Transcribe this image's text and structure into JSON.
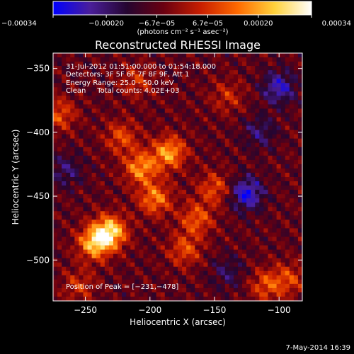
{
  "chart_data": {
    "type": "heatmap",
    "title": "Reconstructed RHESSI Image",
    "xlabel": "Heliocentric X (arcsec)",
    "ylabel": "Heliocentric Y (arcsec)",
    "xlim": [
      -275,
      -82
    ],
    "ylim": [
      -532,
      -338
    ],
    "x_ticks": [
      -250,
      -200,
      -150,
      -100
    ],
    "x_tick_labels": [
      "−250",
      "−200",
      "−150",
      "−100"
    ],
    "y_ticks": [
      -350,
      -400,
      -450,
      -500
    ],
    "y_tick_labels": [
      "−350",
      "−400",
      "−450",
      "−500"
    ],
    "colorbar": {
      "range": [
        -0.00034,
        0.00034
      ],
      "tick_values": [
        -0.00034,
        -0.0002,
        -6.7e-05,
        6.7e-05,
        0.0002,
        0.00034
      ],
      "tick_labels": [
        "−0.00034",
        "−0.00020",
        "−6.7e−05",
        "6.7e−05",
        "0.00020",
        "0.00034"
      ],
      "unit_label": "(photons cm⁻² s⁻¹ asec⁻²)",
      "colormap": [
        "#0000ff",
        "#4a1e9a",
        "#250530",
        "#6a0010",
        "#c81e00",
        "#ff6a00",
        "#ffd23c",
        "#ffffff"
      ]
    },
    "annotations": [
      "31-Jul-2012 01:51:00.000 to 01:54:18.000",
      "Detectors: 3F 5F 6F 7F 8F 9F, Att 1",
      "Energy Range: 25.0 - 50.0 keV",
      "Clean     Total counts: 4.02E+03",
      "Position of Peak = [−231,−478]"
    ],
    "sources": [
      {
        "x": -207,
        "y": -428,
        "intensity": 0.00024
      },
      {
        "x": -185,
        "y": -416,
        "intensity": 0.00026
      },
      {
        "x": -196,
        "y": -452,
        "intensity": 0.00022
      },
      {
        "x": -231,
        "y": -478,
        "intensity": 0.00034
      },
      {
        "x": -243,
        "y": -487,
        "intensity": 0.00028
      },
      {
        "x": -164,
        "y": -468,
        "intensity": 0.00018
      },
      {
        "x": -150,
        "y": -444,
        "intensity": 0.00016
      },
      {
        "x": -222,
        "y": -404,
        "intensity": 0.00016
      },
      {
        "x": -270,
        "y": -386,
        "intensity": 0.00016
      },
      {
        "x": -173,
        "y": -492,
        "intensity": 0.00016
      },
      {
        "x": -110,
        "y": -520,
        "intensity": 0.00016
      },
      {
        "x": -92,
        "y": -515,
        "intensity": 0.00014
      },
      {
        "x": -140,
        "y": -372,
        "intensity": 0.00011
      },
      {
        "x": -210,
        "y": -360,
        "intensity": 0.00012
      },
      {
        "x": -255,
        "y": -520,
        "intensity": 0.00012
      }
    ],
    "negative_sources": [
      {
        "x": -125,
        "y": -448,
        "intensity": -0.00024
      },
      {
        "x": -100,
        "y": -365,
        "intensity": -0.0002
      },
      {
        "x": -115,
        "y": -400,
        "intensity": -0.00012
      },
      {
        "x": -265,
        "y": -430,
        "intensity": -0.00012
      },
      {
        "x": -140,
        "y": -510,
        "intensity": -0.0001
      }
    ]
  },
  "footer": {
    "date": "7-May-2014 16:39"
  }
}
